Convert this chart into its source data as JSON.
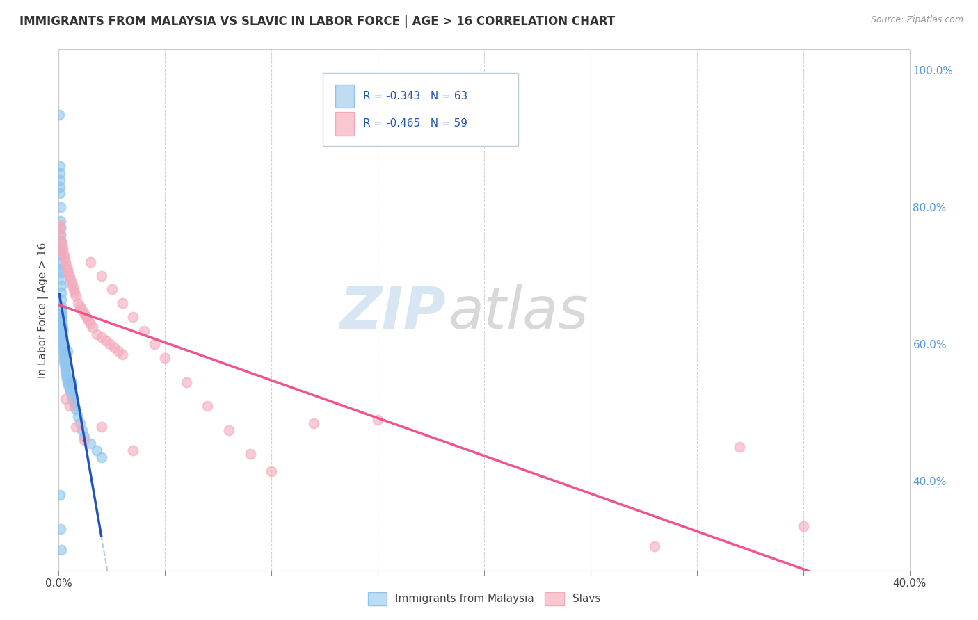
{
  "title": "IMMIGRANTS FROM MALAYSIA VS SLAVIC IN LABOR FORCE | AGE > 16 CORRELATION CHART",
  "source": "Source: ZipAtlas.com",
  "ylabel": "In Labor Force | Age > 16",
  "legend_entry1": "R = -0.343   N = 63",
  "legend_entry2": "R = -0.465   N = 59",
  "legend_label1": "Immigrants from Malaysia",
  "legend_label2": "Slavs",
  "watermark_zip": "ZIP",
  "watermark_atlas": "atlas",
  "xmin": 0.0,
  "xmax": 0.4,
  "ymin": 0.27,
  "ymax": 1.03,
  "malaysia_color": "#8DC4ED",
  "slavic_color": "#F4AABB",
  "malaysia_line_color": "#2255BB",
  "slavic_line_color": "#EE5590",
  "malaysia_x": [
    0.0003,
    0.0004,
    0.0005,
    0.0005,
    0.0006,
    0.0006,
    0.0007,
    0.0007,
    0.0008,
    0.0008,
    0.0009,
    0.0009,
    0.001,
    0.001,
    0.001,
    0.0011,
    0.0011,
    0.0012,
    0.0012,
    0.0013,
    0.0013,
    0.0014,
    0.0014,
    0.0015,
    0.0015,
    0.0016,
    0.0017,
    0.0018,
    0.0019,
    0.002,
    0.002,
    0.0021,
    0.0022,
    0.0023,
    0.0024,
    0.0025,
    0.0026,
    0.0028,
    0.003,
    0.0032,
    0.0035,
    0.0038,
    0.004,
    0.0045,
    0.005,
    0.0055,
    0.006,
    0.0065,
    0.007,
    0.0075,
    0.008,
    0.009,
    0.01,
    0.011,
    0.012,
    0.015,
    0.018,
    0.02,
    0.004,
    0.006,
    0.0005,
    0.0007,
    0.0012
  ],
  "malaysia_y": [
    0.935,
    0.86,
    0.85,
    0.83,
    0.84,
    0.82,
    0.8,
    0.78,
    0.77,
    0.76,
    0.75,
    0.74,
    0.73,
    0.72,
    0.71,
    0.705,
    0.695,
    0.685,
    0.675,
    0.665,
    0.655,
    0.65,
    0.645,
    0.64,
    0.635,
    0.63,
    0.625,
    0.62,
    0.615,
    0.61,
    0.605,
    0.6,
    0.595,
    0.59,
    0.585,
    0.58,
    0.575,
    0.57,
    0.565,
    0.56,
    0.555,
    0.55,
    0.545,
    0.54,
    0.535,
    0.53,
    0.525,
    0.52,
    0.515,
    0.51,
    0.505,
    0.495,
    0.485,
    0.475,
    0.465,
    0.455,
    0.445,
    0.435,
    0.59,
    0.545,
    0.38,
    0.33,
    0.3
  ],
  "slavic_x": [
    0.0005,
    0.0008,
    0.001,
    0.0012,
    0.0015,
    0.0018,
    0.002,
    0.0025,
    0.0028,
    0.003,
    0.0035,
    0.004,
    0.0045,
    0.005,
    0.0055,
    0.006,
    0.0065,
    0.007,
    0.0075,
    0.008,
    0.009,
    0.01,
    0.011,
    0.012,
    0.013,
    0.014,
    0.015,
    0.016,
    0.018,
    0.02,
    0.022,
    0.024,
    0.026,
    0.028,
    0.03,
    0.015,
    0.02,
    0.025,
    0.03,
    0.035,
    0.04,
    0.045,
    0.05,
    0.06,
    0.07,
    0.08,
    0.09,
    0.1,
    0.12,
    0.15,
    0.003,
    0.005,
    0.008,
    0.012,
    0.02,
    0.035,
    0.28,
    0.32,
    0.35
  ],
  "slavic_y": [
    0.775,
    0.77,
    0.76,
    0.75,
    0.745,
    0.74,
    0.735,
    0.73,
    0.725,
    0.72,
    0.715,
    0.71,
    0.705,
    0.7,
    0.695,
    0.69,
    0.685,
    0.68,
    0.675,
    0.67,
    0.66,
    0.655,
    0.65,
    0.645,
    0.64,
    0.635,
    0.63,
    0.625,
    0.615,
    0.61,
    0.605,
    0.6,
    0.595,
    0.59,
    0.585,
    0.72,
    0.7,
    0.68,
    0.66,
    0.64,
    0.62,
    0.6,
    0.58,
    0.545,
    0.51,
    0.475,
    0.44,
    0.415,
    0.485,
    0.49,
    0.52,
    0.51,
    0.48,
    0.46,
    0.48,
    0.445,
    0.305,
    0.45,
    0.335
  ],
  "bg_color": "#FFFFFF",
  "grid_color": "#CCCCCC"
}
